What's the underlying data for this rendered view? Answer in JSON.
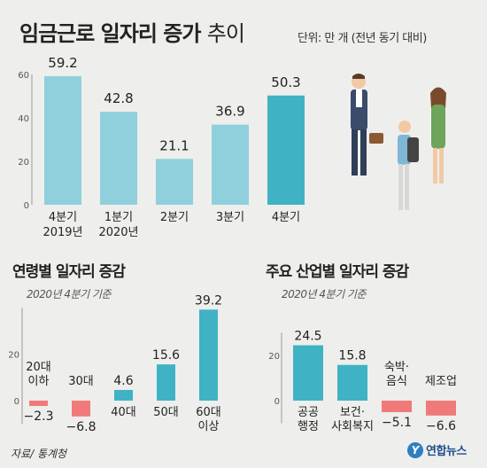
{
  "header": {
    "title_bold": "임금근로 일자리 증가",
    "title_light": "추이",
    "unit": "단위: 만 개 (전년 동기 대비)"
  },
  "colors": {
    "bar": "#8fd0dc",
    "bar_highlight": "#3fb3c4",
    "bar_negative": "#f07a7a",
    "axis_text": "#555555"
  },
  "chart_data": [
    {
      "type": "bar",
      "title": "임금근로 일자리 증가 추이",
      "categories": [
        [
          "4분기",
          "2019년"
        ],
        [
          "1분기",
          "2020년"
        ],
        [
          "2분기"
        ],
        [
          "3분기"
        ],
        [
          "4분기"
        ]
      ],
      "values": [
        59.2,
        42.8,
        21.1,
        36.9,
        50.3
      ],
      "ylim": [
        0,
        60
      ],
      "yticks": [
        0,
        20,
        40,
        60
      ],
      "highlight_index": 4
    },
    {
      "type": "bar",
      "title": "연령별 일자리 증감",
      "subtitle": "2020년 4분기 기준",
      "categories": [
        [
          "20대",
          "이하"
        ],
        [
          "30대"
        ],
        [
          "40대"
        ],
        [
          "50대"
        ],
        [
          "60대",
          "이상"
        ]
      ],
      "values": [
        -2.3,
        -6.8,
        4.6,
        15.6,
        39.2
      ],
      "ylim": [
        -10,
        40
      ],
      "yticks": [
        0,
        20
      ]
    },
    {
      "type": "bar",
      "title": "주요 산업별 일자리 증감",
      "subtitle": "2020년 4분기 기준",
      "categories": [
        [
          "공공",
          "행정"
        ],
        [
          "보건·",
          "사회복지"
        ],
        [
          "숙박·",
          "음식"
        ],
        [
          "제조업"
        ]
      ],
      "values": [
        24.5,
        15.8,
        -5.1,
        -6.6
      ],
      "ylim": [
        -10,
        30
      ],
      "yticks": [
        0,
        20
      ]
    }
  ],
  "sections": {
    "age_title": "연령별 일자리 증감",
    "age_sub": "2020년 4분기 기준",
    "ind_title": "주요 산업별 일자리 증감",
    "ind_sub": "2020년 4분기 기준"
  },
  "footer": {
    "source": "자료/ 통계청",
    "logo_mark": "Y",
    "logo_text": "연합뉴스"
  }
}
